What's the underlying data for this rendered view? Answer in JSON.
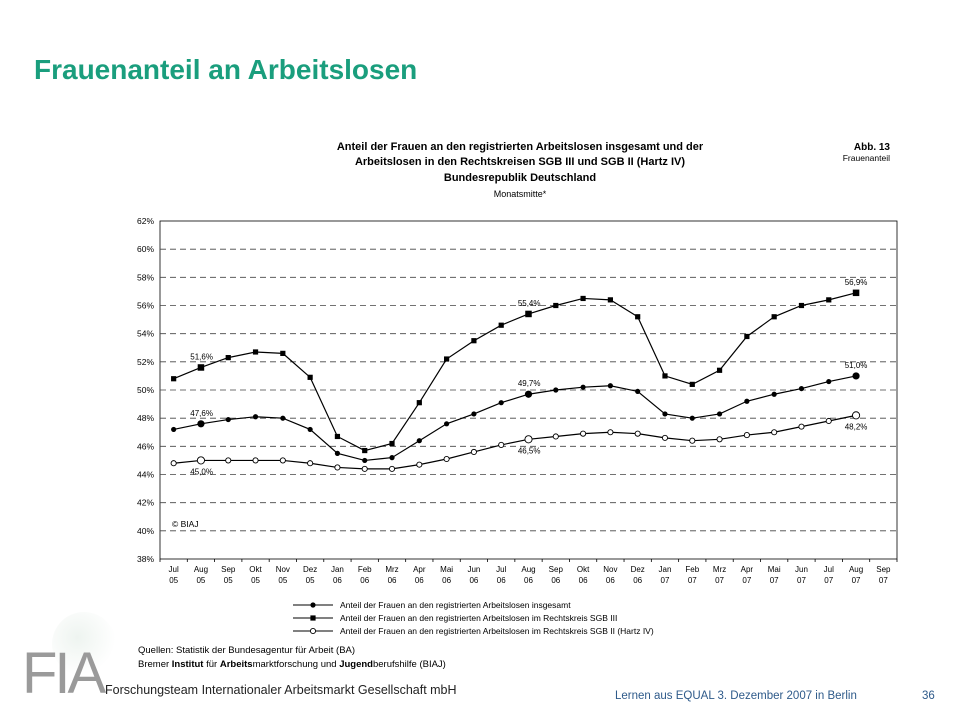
{
  "slide_title": "Frauenanteil an Arbeitslosen",
  "chart_data": {
    "type": "line",
    "title_lines": [
      "Anteil der Frauen an den registrierten Arbeitslosen insgesamt und der",
      "Arbeitslosen in den Rechtskreisen SGB III und SGB II (Hartz IV)",
      "Bundesrepublik Deutschland"
    ],
    "subtitle": "Monatsmitte*",
    "figure_label": "Abb. 13",
    "figure_sublabel": "Frauenanteil",
    "copyright": "© BIAJ",
    "ylim": [
      38,
      62
    ],
    "y_ticks": [
      "38%",
      "40%",
      "42%",
      "44%",
      "46%",
      "48%",
      "50%",
      "52%",
      "54%",
      "56%",
      "58%",
      "60%",
      "62%"
    ],
    "grid": true,
    "legend_position": "bottom",
    "categories": [
      [
        "Jul",
        "05"
      ],
      [
        "Aug",
        "05"
      ],
      [
        "Sep",
        "05"
      ],
      [
        "Okt",
        "05"
      ],
      [
        "Nov",
        "05"
      ],
      [
        "Dez",
        "05"
      ],
      [
        "Jan",
        "06"
      ],
      [
        "Feb",
        "06"
      ],
      [
        "Mrz",
        "06"
      ],
      [
        "Apr",
        "06"
      ],
      [
        "Mai",
        "06"
      ],
      [
        "Jun",
        "06"
      ],
      [
        "Jul",
        "06"
      ],
      [
        "Aug",
        "06"
      ],
      [
        "Sep",
        "06"
      ],
      [
        "Okt",
        "06"
      ],
      [
        "Nov",
        "06"
      ],
      [
        "Dez",
        "06"
      ],
      [
        "Jan",
        "07"
      ],
      [
        "Feb",
        "07"
      ],
      [
        "Mrz",
        "07"
      ],
      [
        "Apr",
        "07"
      ],
      [
        "Mai",
        "07"
      ],
      [
        "Jun",
        "07"
      ],
      [
        "Jul",
        "07"
      ],
      [
        "Aug",
        "07"
      ],
      [
        "Sep",
        "07"
      ]
    ],
    "series": [
      {
        "name": "Anteil der Frauen an den registrierten Arbeitslosen insgesamt",
        "marker": "filled-circle",
        "values": [
          47.2,
          47.6,
          47.9,
          48.1,
          48.0,
          47.2,
          45.5,
          45.0,
          45.2,
          46.4,
          47.6,
          48.3,
          49.1,
          49.7,
          50.0,
          50.2,
          50.3,
          49.9,
          48.3,
          48.0,
          48.3,
          49.2,
          49.7,
          50.1,
          50.6,
          51.0,
          null
        ],
        "labels": [
          {
            "index": 1,
            "text": "47,6%"
          },
          {
            "index": 13,
            "text": "49,7%"
          },
          {
            "index": 25,
            "text": "51,0%"
          }
        ]
      },
      {
        "name": "Anteil der Frauen an den registrierten Arbeitslosen im Rechtskreis SGB III",
        "marker": "filled-square",
        "values": [
          50.8,
          51.6,
          52.3,
          52.7,
          52.6,
          50.9,
          46.7,
          45.7,
          46.2,
          49.1,
          52.2,
          53.5,
          54.6,
          55.4,
          56.0,
          56.5,
          56.4,
          55.2,
          51.0,
          50.4,
          51.4,
          53.8,
          55.2,
          56.0,
          56.4,
          56.9,
          null
        ],
        "labels": [
          {
            "index": 1,
            "text": "51,6%"
          },
          {
            "index": 13,
            "text": "55,4%"
          },
          {
            "index": 25,
            "text": "56,9%"
          }
        ]
      },
      {
        "name": "Anteil der Frauen an den registrierten Arbeitslosen im Rechtskreis SGB II (Hartz IV)",
        "marker": "open-circle",
        "values": [
          44.8,
          45.0,
          45.0,
          45.0,
          45.0,
          44.8,
          44.5,
          44.4,
          44.4,
          44.7,
          45.1,
          45.6,
          46.1,
          46.5,
          46.7,
          46.9,
          47.0,
          46.9,
          46.6,
          46.4,
          46.5,
          46.8,
          47.0,
          47.4,
          47.8,
          48.2,
          null
        ],
        "labels": [
          {
            "index": 1,
            "text": "45,0%"
          },
          {
            "index": 13,
            "text": "46,5%"
          },
          {
            "index": 25,
            "text": "48,2%"
          }
        ]
      }
    ]
  },
  "sources": {
    "line1": "Quellen: Statistik der Bundesagentur für Arbeit (BA)",
    "line2_parts": [
      {
        "text": "Bremer ",
        "bold": false
      },
      {
        "text": "Institut",
        "bold": true
      },
      {
        "text": " für ",
        "bold": false
      },
      {
        "text": "Arbeits",
        "bold": true
      },
      {
        "text": "marktforschung und ",
        "bold": false
      },
      {
        "text": "Jugend",
        "bold": true
      },
      {
        "text": "berufshilfe (BIAJ)",
        "bold": false
      }
    ]
  },
  "logo": {
    "mark": "FIA",
    "subtitle": "Forschungsteam Internationaler Arbeitsmarkt Gesellschaft mbH"
  },
  "footer": {
    "text": "Lernen aus EQUAL 3. Dezember 2007 in Berlin",
    "page_number": "36"
  }
}
